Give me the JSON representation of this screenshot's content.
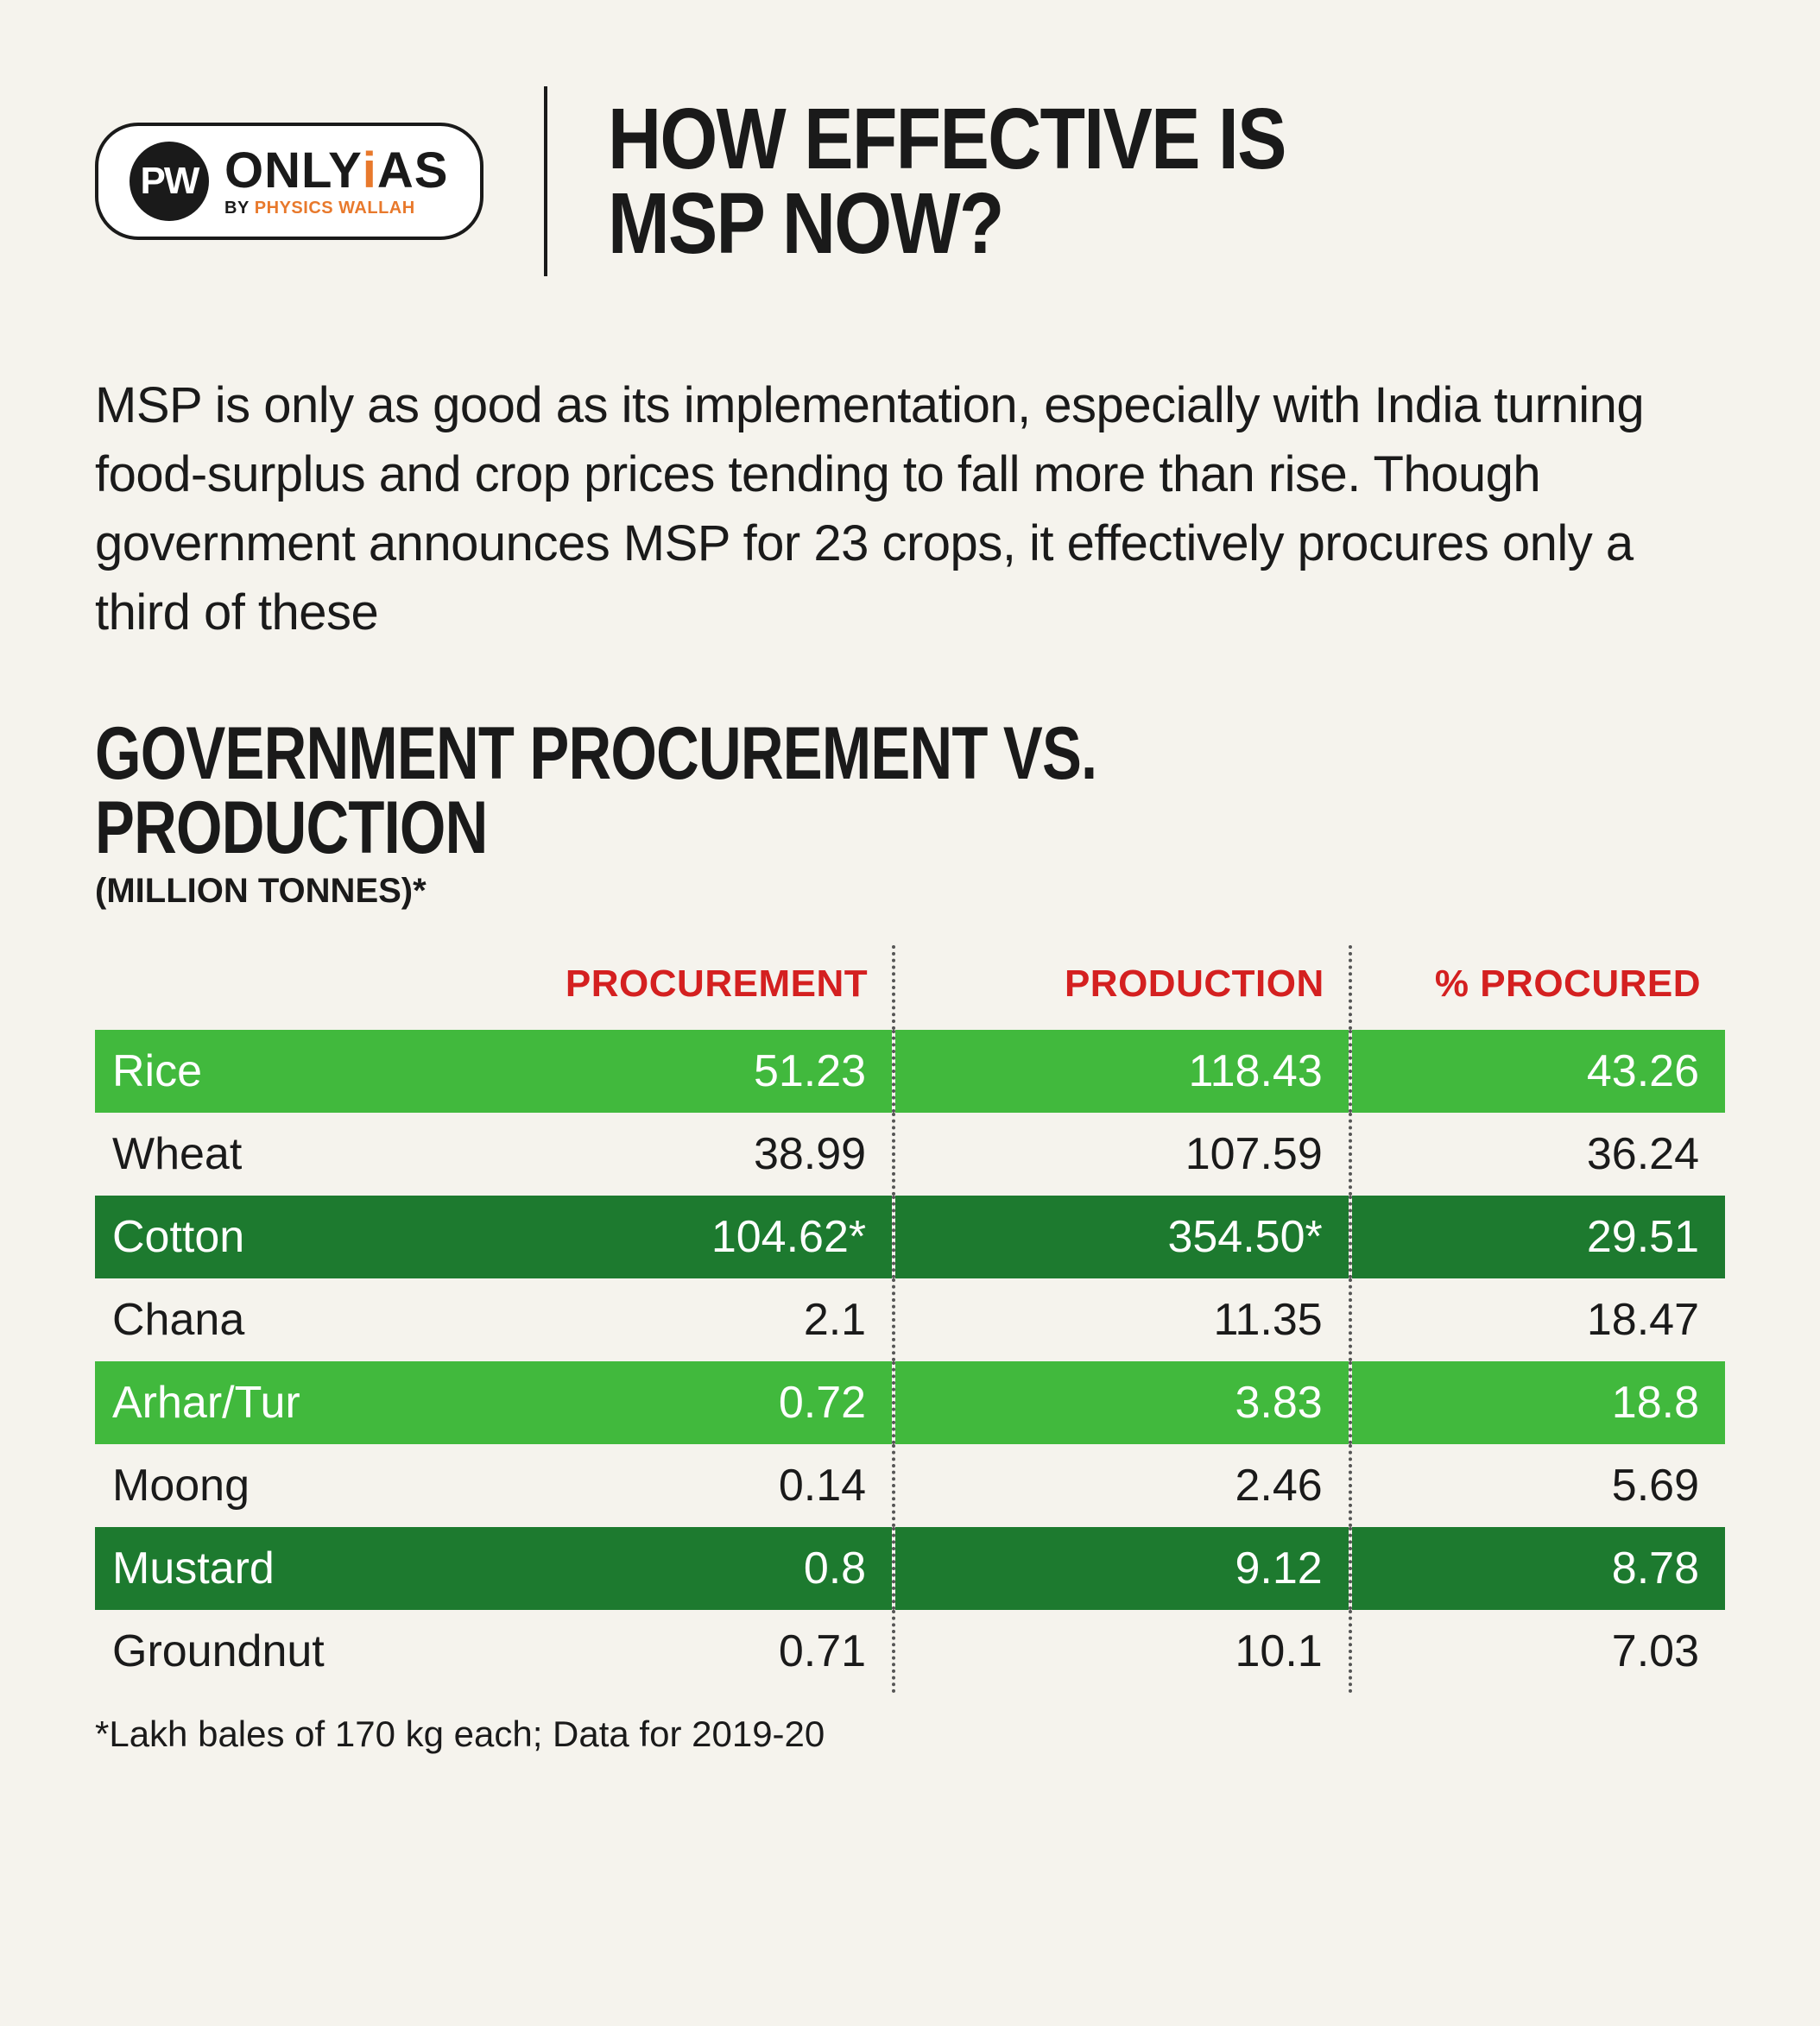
{
  "logo": {
    "circle_text": "PW",
    "main_pre": "ONLY",
    "main_dot": "i",
    "main_post": "AS",
    "sub_by": "BY",
    "sub_brand": "PHYSICS WALLAH"
  },
  "headline_line1": "HOW EFFECTIVE IS",
  "headline_line2": "MSP NOW?",
  "intro": "MSP is only as good as its implementation, especially with India turning food-surplus and crop prices tending to fall more than rise. Though government announces MSP for 23 crops, it effectively procures only a third of these",
  "section": {
    "title": "GOVERNMENT PROCUREMENT VS. PRODUCTION",
    "unit": "(MILLION TONNES)*"
  },
  "table": {
    "type": "table",
    "header_color": "#d42020",
    "row_colors": {
      "light": "#41b93d",
      "dark": "#1d7a2f",
      "white": "#f5f3ed"
    },
    "columns": [
      "",
      "PROCUREMENT",
      "PRODUCTION",
      "% PROCURED"
    ],
    "rows": [
      {
        "crop": "Rice",
        "proc": "51.23",
        "prod": "118.43",
        "pct": "43.26",
        "style": "light"
      },
      {
        "crop": "Wheat",
        "proc": "38.99",
        "prod": "107.59",
        "pct": "36.24",
        "style": "white"
      },
      {
        "crop": "Cotton",
        "proc": "104.62*",
        "prod": "354.50*",
        "pct": "29.51",
        "style": "dark"
      },
      {
        "crop": "Chana",
        "proc": "2.1",
        "prod": "11.35",
        "pct": "18.47",
        "style": "white"
      },
      {
        "crop": "Arhar/Tur",
        "proc": "0.72",
        "prod": "3.83",
        "pct": "18.8",
        "style": "light"
      },
      {
        "crop": "Moong",
        "proc": "0.14",
        "prod": "2.46",
        "pct": "5.69",
        "style": "white"
      },
      {
        "crop": "Mustard",
        "proc": "0.8",
        "prod": "9.12",
        "pct": "8.78",
        "style": "dark"
      },
      {
        "crop": "Groundnut",
        "proc": "0.71",
        "prod": "10.1",
        "pct": "7.03",
        "style": "white"
      }
    ]
  },
  "footnote": "*Lakh bales of 170 kg each; Data for 2019-20"
}
